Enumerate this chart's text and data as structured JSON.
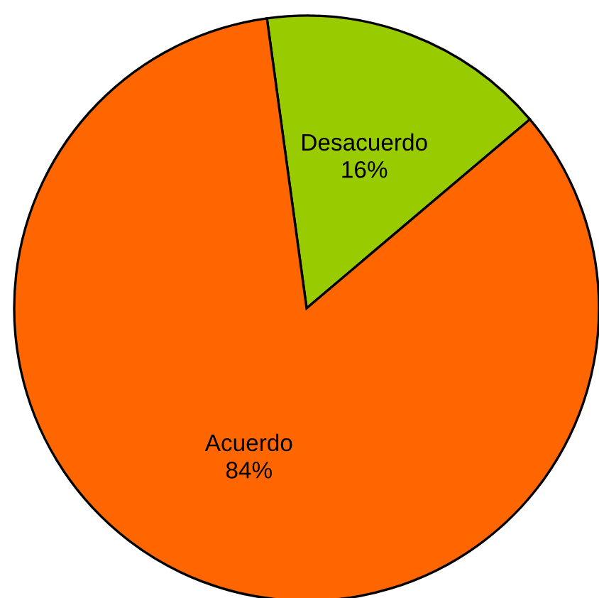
{
  "chart_data": {
    "type": "pie",
    "categories": [
      "Desacuerdo",
      "Acuerdo"
    ],
    "values": [
      16,
      84
    ],
    "value_labels": [
      "16%",
      "84%"
    ],
    "colors": [
      "#99cc00",
      "#ff6600"
    ]
  }
}
